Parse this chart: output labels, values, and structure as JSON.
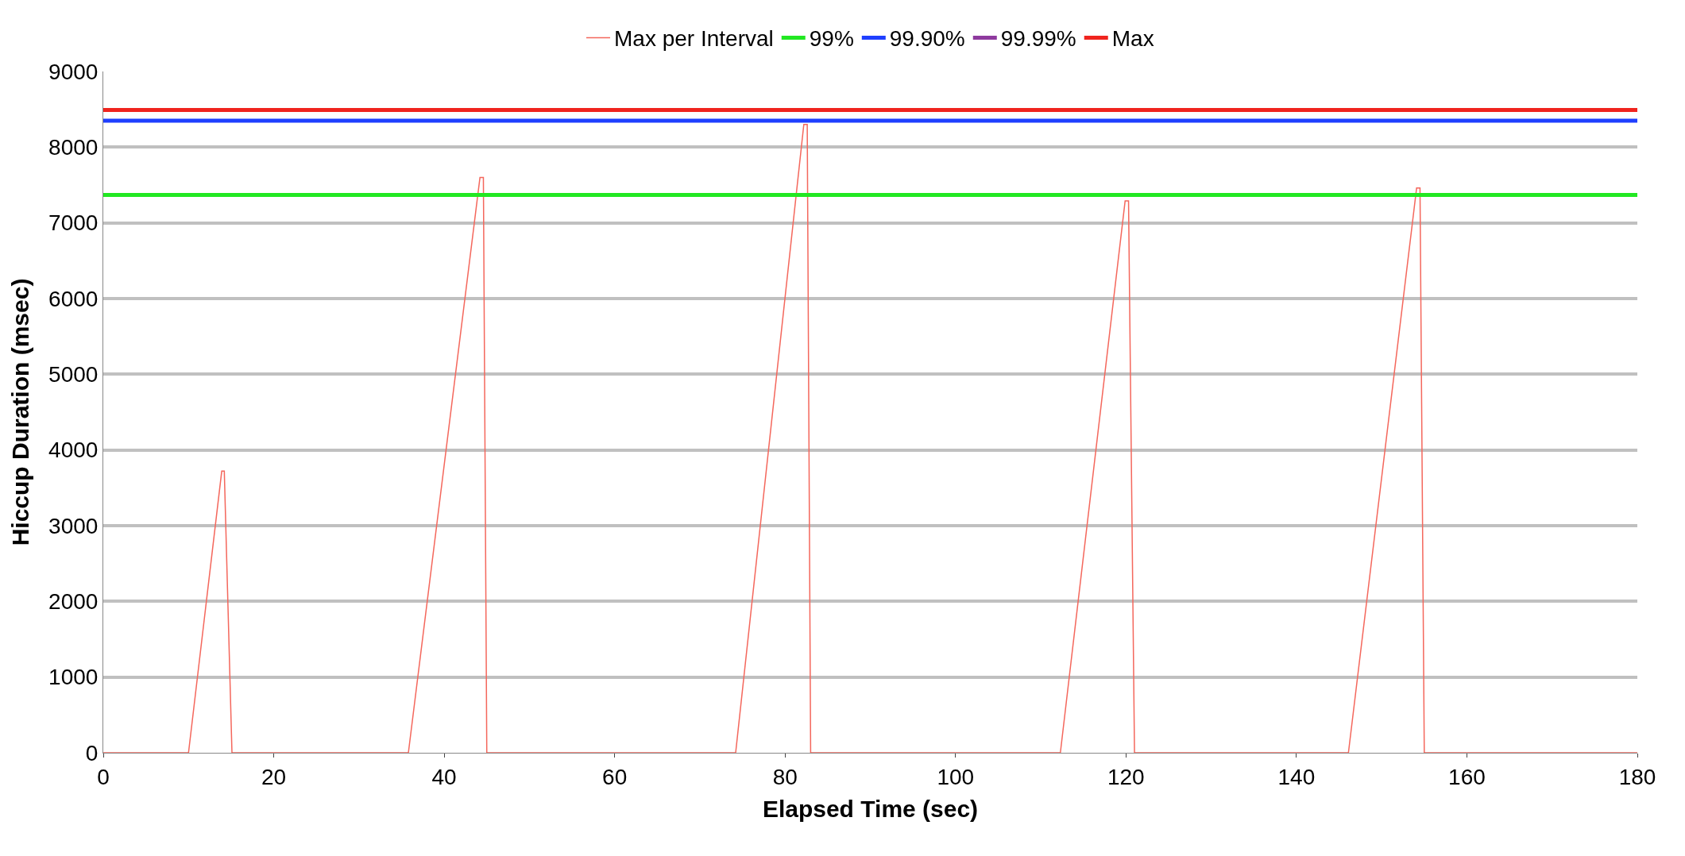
{
  "chart_data": {
    "type": "line",
    "xlabel": "Elapsed Time (sec)",
    "ylabel": "Hiccup Duration (msec)",
    "xlim": [
      0,
      180
    ],
    "xticks": [
      0,
      20,
      40,
      60,
      80,
      100,
      120,
      140,
      160,
      180
    ],
    "ylim": [
      0,
      9000
    ],
    "yticks": [
      0,
      1000,
      2000,
      3000,
      4000,
      5000,
      6000,
      7000,
      8000,
      9000
    ],
    "grid": "y",
    "legend": "top",
    "marker": "none",
    "line_style": "solid",
    "series": [
      {
        "name": "Max per Interval",
        "color": "#f4675c",
        "x": [
          0,
          10,
          13.9,
          14.2,
          15.1,
          35.8,
          44.2,
          44.6,
          45,
          74.2,
          82.2,
          82.6,
          83,
          112.3,
          119.9,
          120.3,
          121,
          146.1,
          154.1,
          154.5,
          155,
          180
        ],
        "values": [
          0,
          0,
          3720,
          3720,
          0,
          0,
          7600,
          7600,
          0,
          0,
          8300,
          8300,
          0,
          0,
          7290,
          7290,
          0,
          0,
          7460,
          7460,
          0,
          0
        ]
      },
      {
        "name": "99%",
        "color": "#22e822",
        "x": [
          0,
          180
        ],
        "values": [
          7370,
          7370
        ]
      },
      {
        "name": "99.90%",
        "color": "#1f3fff",
        "x": [
          0,
          180
        ],
        "values": [
          8350,
          8350
        ]
      },
      {
        "name": "99.99%",
        "color": "#8e3a9e"
      },
      {
        "name": "Max",
        "color": "#f0241e",
        "x": [
          0,
          180
        ],
        "values": [
          8490,
          8490
        ]
      }
    ]
  }
}
